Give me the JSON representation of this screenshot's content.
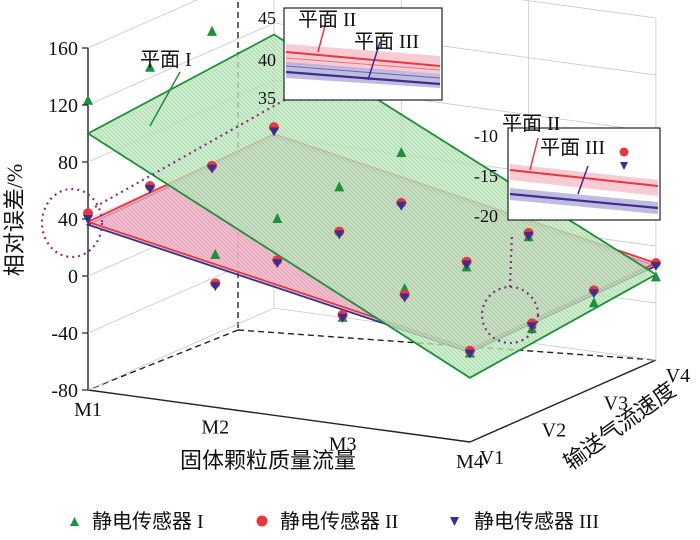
{
  "chart_data": {
    "type": "scatter",
    "title": "",
    "zlabel": "相对误差/%",
    "xlabel": "固体颗粒质量流量",
    "ylabel": "输送气流速度",
    "x_categories": [
      "M1",
      "M2",
      "M3",
      "M4"
    ],
    "y_categories": [
      "V1",
      "V2",
      "V3",
      "V4"
    ],
    "zlim": [
      -80,
      160
    ],
    "zticks": [
      "-80",
      "-40",
      "0",
      "40",
      "80",
      "120",
      "160"
    ],
    "series": [
      {
        "name": "静电传感器 I",
        "marker": "triangle-up",
        "color": "#1e8f3a",
        "points": [
          {
            "x": "M1",
            "y": "V1",
            "z": 123
          },
          {
            "x": "M1",
            "y": "V2",
            "z": 127
          },
          {
            "x": "M1",
            "y": "V3",
            "z": 133
          },
          {
            "x": "M1",
            "y": "V4",
            "z": 139
          },
          {
            "x": "M2",
            "y": "V1",
            "z": 27
          },
          {
            "x": "M2",
            "y": "V2",
            "z": 33
          },
          {
            "x": "M2",
            "y": "V3",
            "z": 36
          },
          {
            "x": "M2",
            "y": "V4",
            "z": 41
          },
          {
            "x": "M3",
            "y": "V1",
            "z": -5
          },
          {
            "x": "M3",
            "y": "V2",
            "z": -4
          },
          {
            "x": "M3",
            "y": "V3",
            "z": -8
          },
          {
            "x": "M3",
            "y": "V4",
            "z": -6
          },
          {
            "x": "M4",
            "y": "V1",
            "z": -18
          },
          {
            "x": "M4",
            "y": "V2",
            "z": -20
          },
          {
            "x": "M4",
            "y": "V3",
            "z": -21
          },
          {
            "x": "M4",
            "y": "V4",
            "z": -22
          }
        ]
      },
      {
        "name": "静电传感器 II",
        "marker": "circle",
        "color": "#e8373e",
        "points": [
          {
            "x": "M1",
            "y": "V1",
            "z": 44
          },
          {
            "x": "M1",
            "y": "V2",
            "z": 44
          },
          {
            "x": "M1",
            "y": "V3",
            "z": 39
          },
          {
            "x": "M1",
            "y": "V4",
            "z": 47
          },
          {
            "x": "M2",
            "y": "V1",
            "z": 7
          },
          {
            "x": "M2",
            "y": "V2",
            "z": 4
          },
          {
            "x": "M2",
            "y": "V3",
            "z": 5
          },
          {
            "x": "M2",
            "y": "V4",
            "z": 6
          },
          {
            "x": "M3",
            "y": "V1",
            "z": -3
          },
          {
            "x": "M3",
            "y": "V2",
            "z": -8
          },
          {
            "x": "M3",
            "y": "V3",
            "z": -4
          },
          {
            "x": "M3",
            "y": "V4",
            "z": -3
          },
          {
            "x": "M4",
            "y": "V1",
            "z": -16
          },
          {
            "x": "M4",
            "y": "V2",
            "z": -16
          },
          {
            "x": "M4",
            "y": "V3",
            "z": -12
          },
          {
            "x": "M4",
            "y": "V4",
            "z": -12
          }
        ]
      },
      {
        "name": "静电传感器 III",
        "marker": "triangle-down",
        "color": "#3a2f8f",
        "points": [
          {
            "x": "M1",
            "y": "V1",
            "z": 40
          },
          {
            "x": "M1",
            "y": "V2",
            "z": 42
          },
          {
            "x": "M1",
            "y": "V3",
            "z": 37
          },
          {
            "x": "M1",
            "y": "V4",
            "z": 44
          },
          {
            "x": "M2",
            "y": "V1",
            "z": 5
          },
          {
            "x": "M2",
            "y": "V2",
            "z": 2
          },
          {
            "x": "M2",
            "y": "V3",
            "z": 3
          },
          {
            "x": "M2",
            "y": "V4",
            "z": 4
          },
          {
            "x": "M3",
            "y": "V1",
            "z": -5
          },
          {
            "x": "M3",
            "y": "V2",
            "z": -10
          },
          {
            "x": "M3",
            "y": "V3",
            "z": -6
          },
          {
            "x": "M3",
            "y": "V4",
            "z": -5
          },
          {
            "x": "M4",
            "y": "V1",
            "z": -18
          },
          {
            "x": "M4",
            "y": "V2",
            "z": -18
          },
          {
            "x": "M4",
            "y": "V3",
            "z": -14
          },
          {
            "x": "M4",
            "y": "V4",
            "z": -14
          }
        ]
      }
    ],
    "planes": [
      {
        "name": "平面 I",
        "color": "#1e8f3a",
        "fill": "#bfe7bf",
        "corners_z": {
          "M1V1": 100,
          "M1V4": 112,
          "M4V1": -35,
          "M4V4": -20
        }
      },
      {
        "name": "平面 II",
        "color": "#e8373e",
        "fill": "#f6b8c6",
        "corners_z": {
          "M1V1": 38,
          "M1V4": 42,
          "M4V1": -15,
          "M4V4": -12
        }
      },
      {
        "name": "平面 III",
        "color": "#3a2f8f",
        "fill": "#a9a6d6",
        "corners_z": {
          "M1V1": 36,
          "M1V4": 40,
          "M4V1": -17,
          "M4V4": -14
        }
      }
    ],
    "annotations": {
      "main_plane_label": "平面 I",
      "inset1": {
        "labels": [
          "平面 II",
          "平面 III"
        ],
        "zticks": [
          "45",
          "40",
          "35"
        ]
      },
      "inset2": {
        "labels": [
          "平面 II",
          "平面 III"
        ],
        "zticks": [
          "-10",
          "-15",
          "-20"
        ]
      }
    },
    "legend": {
      "placement": "bottom",
      "entries": [
        "静电传感器 I",
        "静电传感器 II",
        "静电传感器 III"
      ]
    }
  }
}
